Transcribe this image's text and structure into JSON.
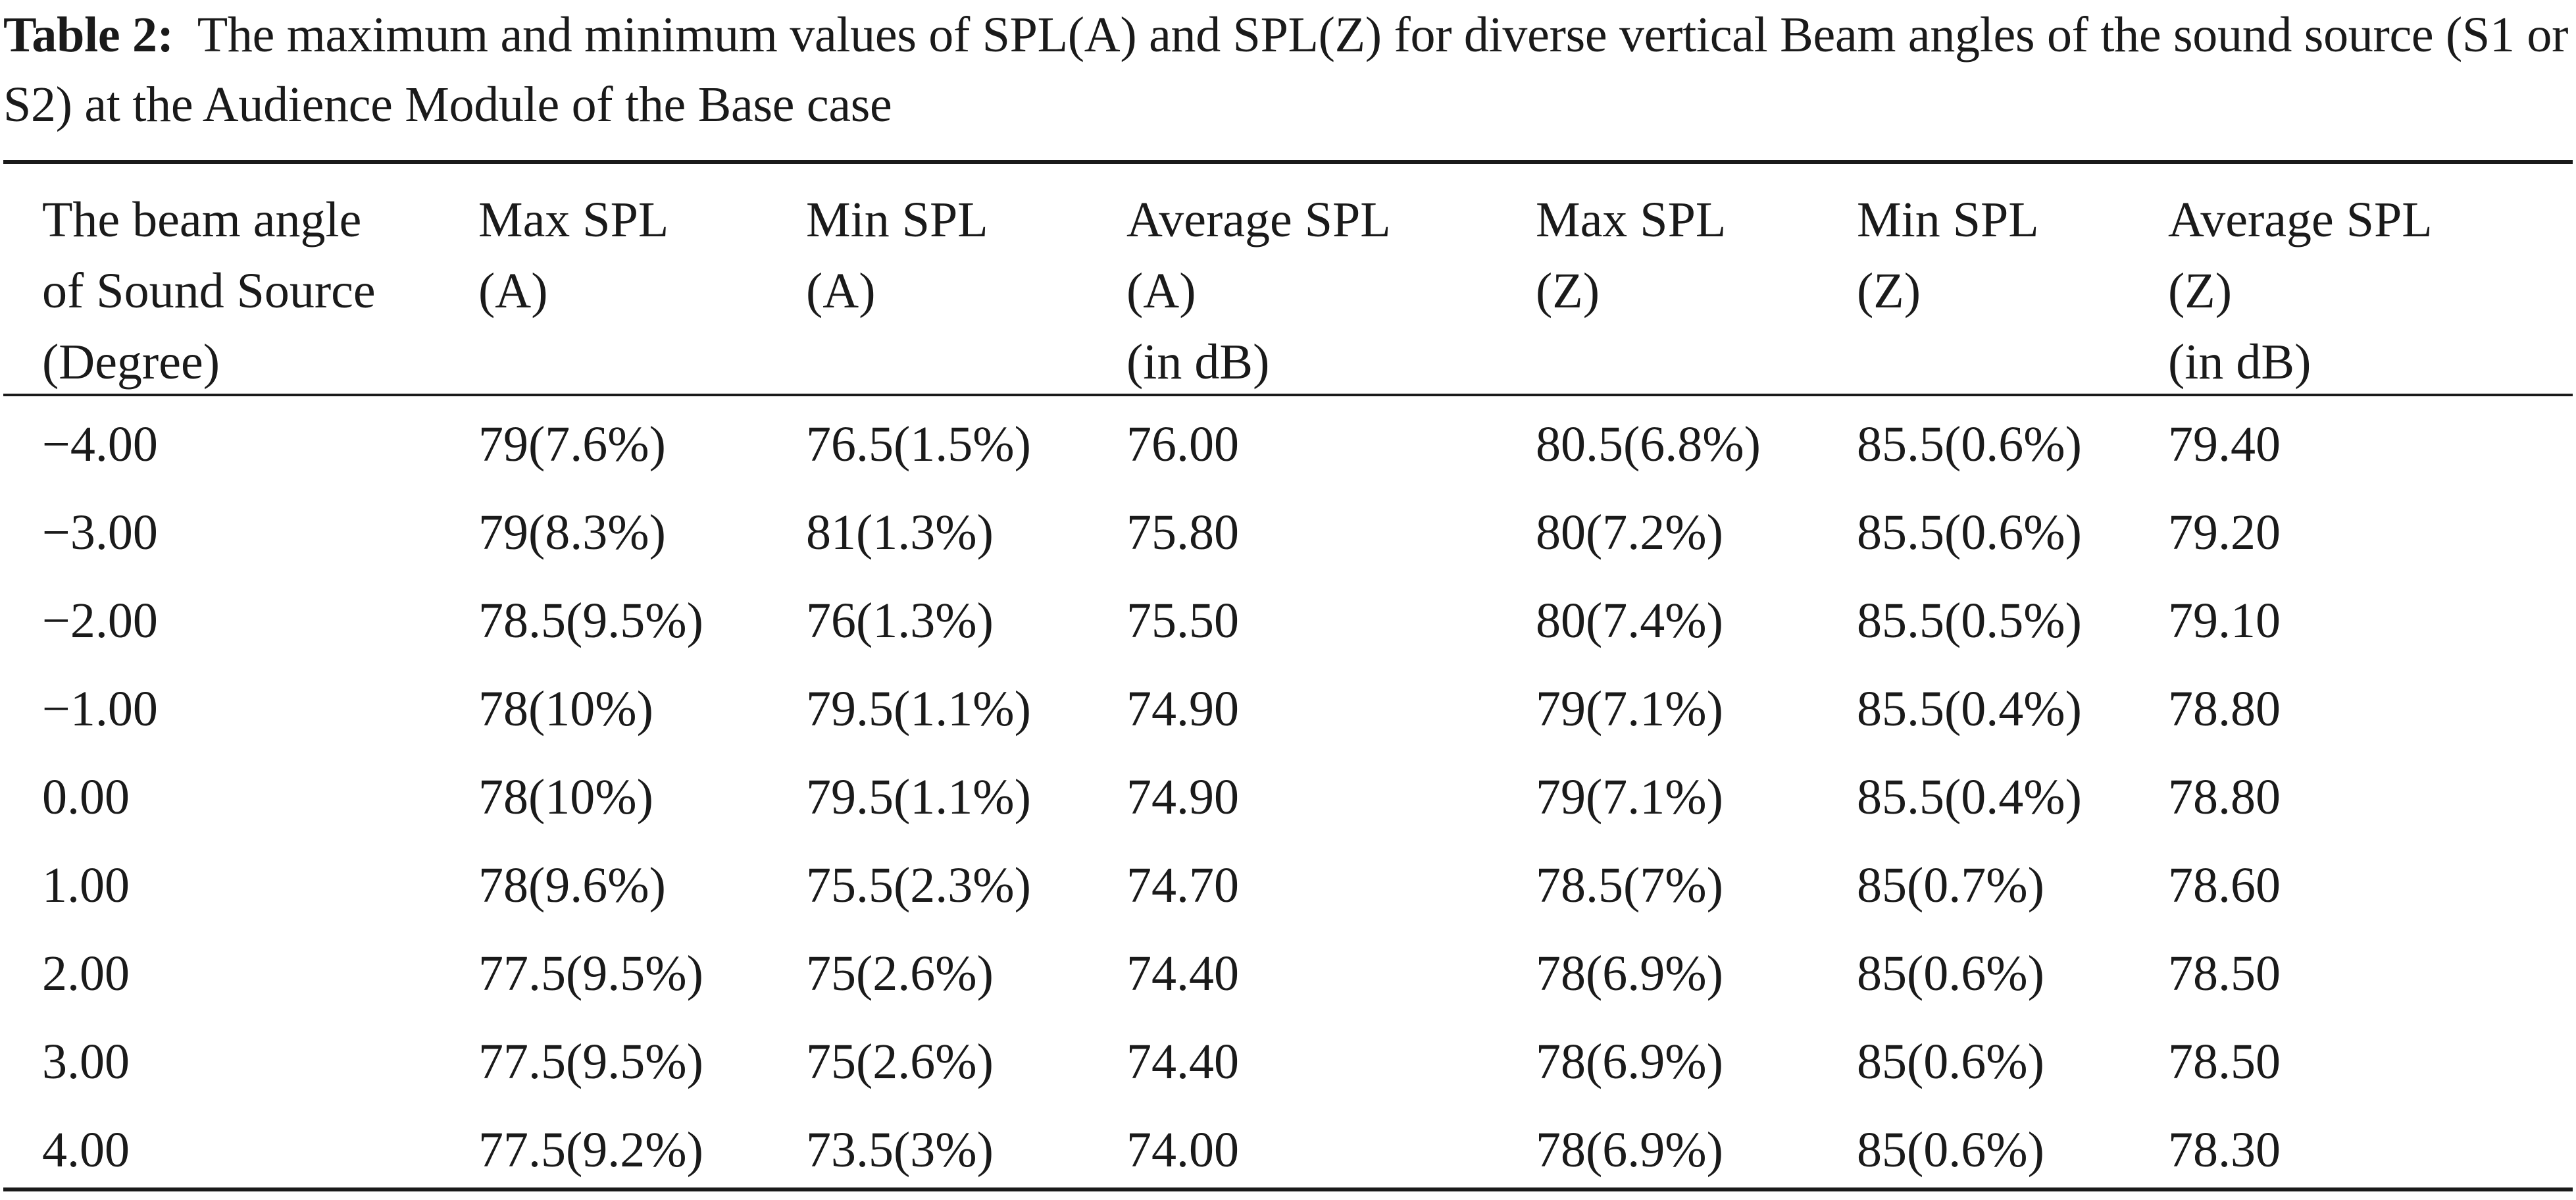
{
  "caption": {
    "label": "Table 2:",
    "text": "The maximum and minimum values of SPL(A) and SPL(Z) for diverse vertical Beam angles of the sound source (S1 or S2) at the Audience Module of the Base case"
  },
  "table": {
    "headers": [
      "The beam angle\nof Sound Source\n(Degree)",
      "Max SPL\n(A)",
      "Min SPL\n(A)",
      "Average SPL\n(A)\n(in dB)",
      "Max SPL\n(Z)",
      "Min SPL\n(Z)",
      "Average SPL\n(Z)\n(in dB)"
    ],
    "rows": [
      [
        "−4.00",
        "79(7.6%)",
        "76.5(1.5%)",
        "76.00",
        "80.5(6.8%)",
        "85.5(0.6%)",
        "79.40"
      ],
      [
        "−3.00",
        "79(8.3%)",
        "81(1.3%)",
        "75.80",
        "80(7.2%)",
        "85.5(0.6%)",
        "79.20"
      ],
      [
        "−2.00",
        "78.5(9.5%)",
        "76(1.3%)",
        "75.50",
        "80(7.4%)",
        "85.5(0.5%)",
        "79.10"
      ],
      [
        "−1.00",
        "78(10%)",
        "79.5(1.1%)",
        "74.90",
        "79(7.1%)",
        "85.5(0.4%)",
        "78.80"
      ],
      [
        "0.00",
        "78(10%)",
        "79.5(1.1%)",
        "74.90",
        "79(7.1%)",
        "85.5(0.4%)",
        "78.80"
      ],
      [
        "1.00",
        "78(9.6%)",
        "75.5(2.3%)",
        "74.70",
        "78.5(7%)",
        "85(0.7%)",
        "78.60"
      ],
      [
        "2.00",
        "77.5(9.5%)",
        "75(2.6%)",
        "74.40",
        "78(6.9%)",
        "85(0.6%)",
        "78.50"
      ],
      [
        "3.00",
        "77.5(9.5%)",
        "75(2.6%)",
        "74.40",
        "78(6.9%)",
        "85(0.6%)",
        "78.50"
      ],
      [
        "4.00",
        "77.5(9.2%)",
        "73.5(3%)",
        "74.00",
        "78(6.9%)",
        "85(0.6%)",
        "78.30"
      ]
    ]
  }
}
